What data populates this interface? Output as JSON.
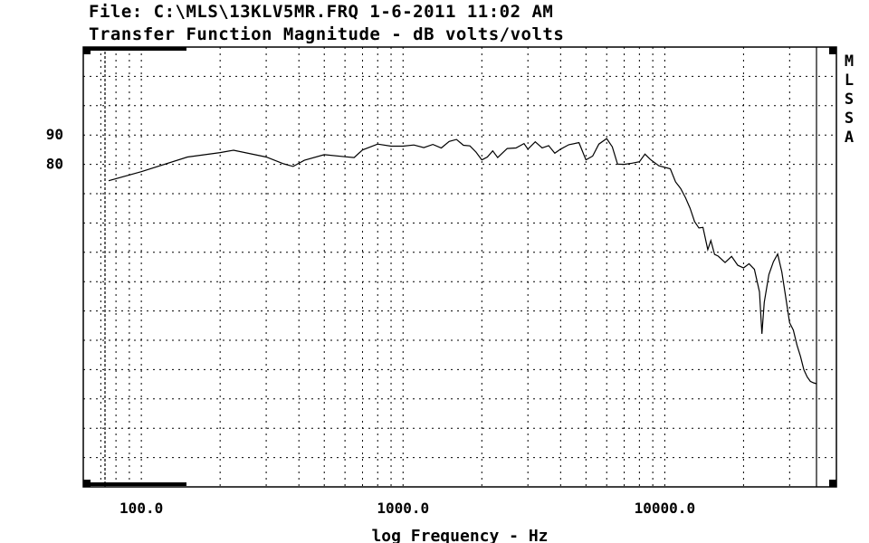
{
  "header": {
    "file": "File: C:\\MLS\\13KLV5MR.FRQ 1-6-2011 11:02 AM",
    "title": "Transfer Function Magnitude - dB volts/volts"
  },
  "side_label": [
    "M",
    "L",
    "S",
    "S",
    "A"
  ],
  "chart_data": {
    "type": "line",
    "title": "Transfer Function Magnitude - dB volts/volts",
    "xlabel": "log Frequency - Hz",
    "ylabel": "",
    "x_scale": "log",
    "xlim": [
      60,
      38000
    ],
    "ylim": [
      -30,
      120
    ],
    "grid": true,
    "x_ticks": [
      {
        "value": 100,
        "label": "100.0"
      },
      {
        "value": 1000,
        "label": "1000.0"
      },
      {
        "value": 10000,
        "label": "10000.0"
      }
    ],
    "y_ticks": [
      {
        "value": 90,
        "label": "90"
      },
      {
        "value": 80,
        "label": "80"
      }
    ],
    "series": [
      {
        "color": "#000000",
        "points": [
          [
            75,
            74.4
          ],
          [
            100,
            77.5
          ],
          [
            150,
            82.5
          ],
          [
            200,
            84
          ],
          [
            225,
            84.8
          ],
          [
            300,
            82.5
          ],
          [
            350,
            80.2
          ],
          [
            380,
            79.3
          ],
          [
            420,
            81.4
          ],
          [
            500,
            83.3
          ],
          [
            600,
            82.6
          ],
          [
            650,
            82.3
          ],
          [
            700,
            84.9
          ],
          [
            800,
            86.9
          ],
          [
            900,
            86.2
          ],
          [
            1000,
            86.2
          ],
          [
            1100,
            86.6
          ],
          [
            1200,
            85.7
          ],
          [
            1300,
            86.8
          ],
          [
            1400,
            85.6
          ],
          [
            1500,
            87.8
          ],
          [
            1600,
            88.5
          ],
          [
            1700,
            86.5
          ],
          [
            1800,
            86.3
          ],
          [
            1900,
            84.2
          ],
          [
            2000,
            81.5
          ],
          [
            2100,
            82.5
          ],
          [
            2200,
            84.6
          ],
          [
            2300,
            82.3
          ],
          [
            2500,
            85.4
          ],
          [
            2700,
            85.6
          ],
          [
            2900,
            87.1
          ],
          [
            3000,
            85.2
          ],
          [
            3200,
            87.7
          ],
          [
            3400,
            85.6
          ],
          [
            3600,
            86.4
          ],
          [
            3800,
            83.8
          ],
          [
            4000,
            85.2
          ],
          [
            4300,
            86.7
          ],
          [
            4700,
            87.4
          ],
          [
            5000,
            81.5
          ],
          [
            5300,
            82.8
          ],
          [
            5600,
            86.9
          ],
          [
            6000,
            88.8
          ],
          [
            6300,
            86
          ],
          [
            6600,
            80.1
          ],
          [
            7000,
            80
          ],
          [
            7500,
            80.4
          ],
          [
            8000,
            80.9
          ],
          [
            8400,
            83.5
          ],
          [
            8800,
            81.7
          ],
          [
            9500,
            79.5
          ],
          [
            10500,
            78.5
          ],
          [
            11000,
            74
          ],
          [
            11500,
            71.8
          ],
          [
            12000,
            68.6
          ],
          [
            12500,
            65
          ],
          [
            13000,
            60.5
          ],
          [
            13500,
            58.3
          ],
          [
            14000,
            58.5
          ],
          [
            14600,
            50.9
          ],
          [
            15000,
            54
          ],
          [
            15500,
            49.3
          ],
          [
            16000,
            48.7
          ],
          [
            17000,
            46.5
          ],
          [
            18000,
            48.6
          ],
          [
            19000,
            45.6
          ],
          [
            20000,
            44.7
          ],
          [
            21000,
            46.1
          ],
          [
            22000,
            44.2
          ],
          [
            23000,
            36.5
          ],
          [
            23500,
            22.2
          ],
          [
            24000,
            33
          ],
          [
            25000,
            42.4
          ],
          [
            26000,
            46.8
          ],
          [
            27000,
            49.4
          ],
          [
            28000,
            43.3
          ],
          [
            29000,
            34.5
          ],
          [
            30000,
            26
          ],
          [
            31000,
            23.5
          ],
          [
            32000,
            18.4
          ],
          [
            33000,
            14.5
          ],
          [
            34000,
            10
          ],
          [
            35000,
            7.5
          ],
          [
            36000,
            6
          ],
          [
            37000,
            5.5
          ],
          [
            38000,
            5.2
          ]
        ]
      }
    ]
  }
}
